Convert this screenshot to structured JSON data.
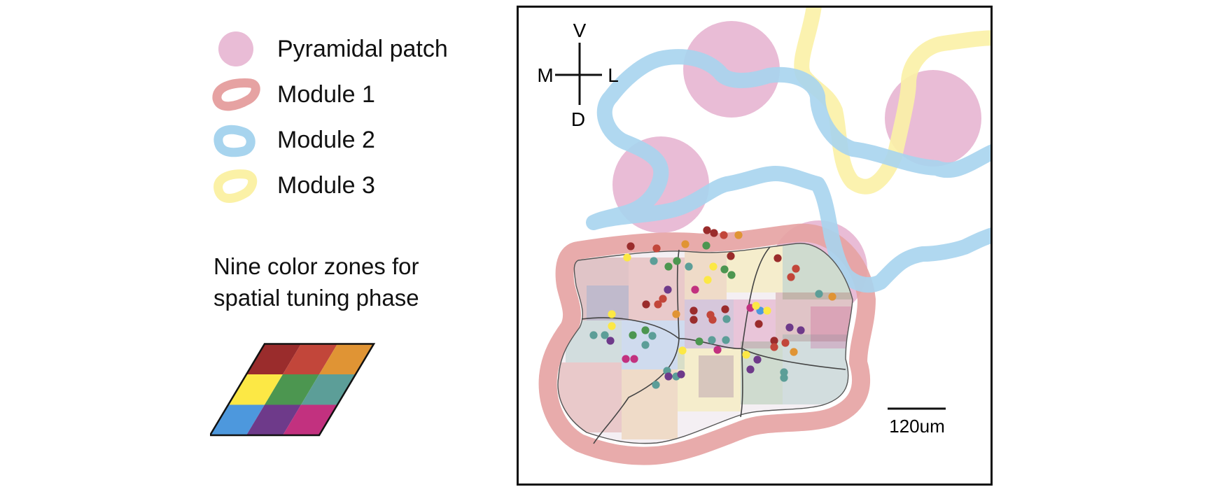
{
  "legend": {
    "items": [
      {
        "label": "Pyramidal patch",
        "symbol": "pyramidal-patch",
        "color": "#E9BCD6"
      },
      {
        "label": "Module 1",
        "symbol": "module-ring",
        "color": "#E6A2A2"
      },
      {
        "label": "Module 2",
        "symbol": "module-ring",
        "color": "#A7D4EE"
      },
      {
        "label": "Module 3",
        "symbol": "module-ring",
        "color": "#FBF1A6"
      }
    ]
  },
  "zones": {
    "title_line1": "Nine color zones for",
    "title_line2": "spatial tuning phase",
    "colors": [
      [
        "#9A2C2C",
        "#C2463A",
        "#E09434"
      ],
      [
        "#FCE845",
        "#4C9650",
        "#5C9E98"
      ],
      [
        "#4D98DD",
        "#6E3A8A",
        "#C2317F"
      ]
    ]
  },
  "orientation": {
    "up": "V",
    "down": "D",
    "left": "M",
    "right": "L"
  },
  "scale_bar": {
    "label": "120um"
  },
  "colors": {
    "patch": "#E9BCD6",
    "module1": "#E6A2A2",
    "module2": "#A7D4EE",
    "module3": "#FBF1A6",
    "frame": "#111111"
  }
}
